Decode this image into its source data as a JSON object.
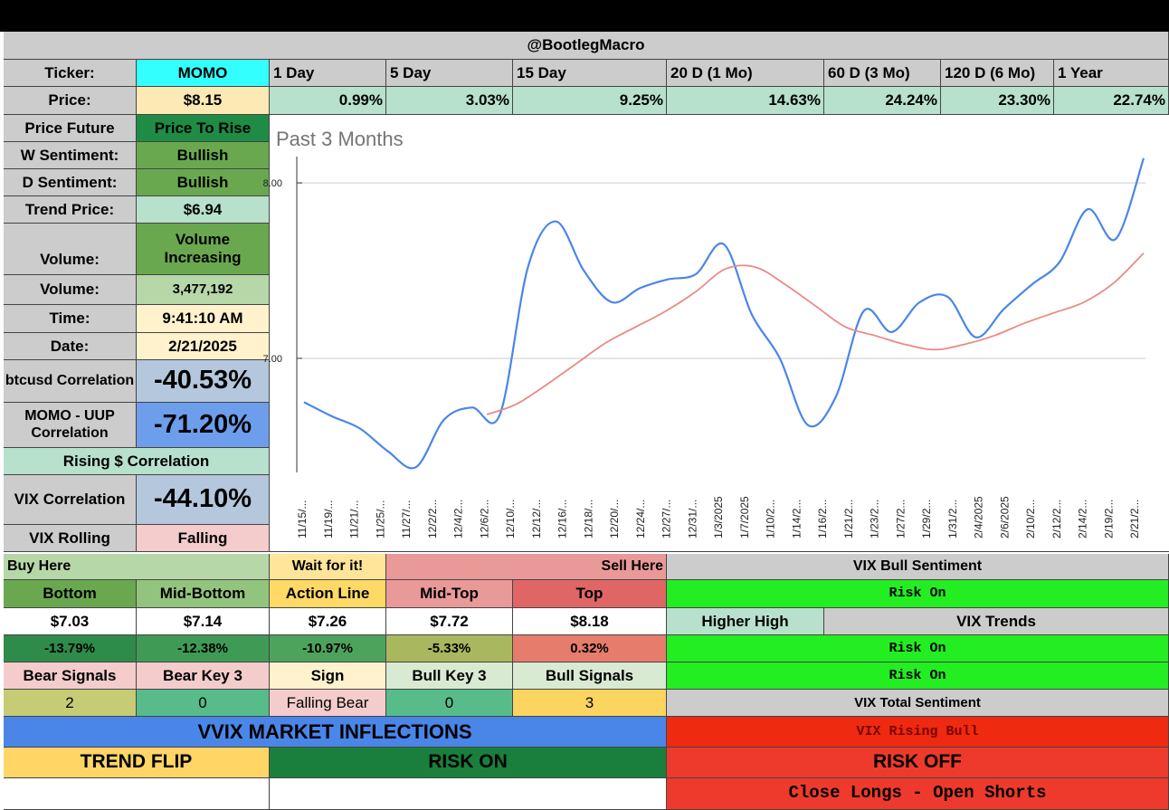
{
  "header": {
    "handle": "@BootlegMacro"
  },
  "ticker": {
    "label": "Ticker:",
    "value": "MOMO"
  },
  "periods": [
    "1 Day",
    "5 Day",
    "15 Day",
    "20 D (1 Mo)",
    "60 D (3 Mo)",
    "120 D (6 Mo)",
    "1 Year"
  ],
  "price": {
    "label": "Price:",
    "value": "$8.15"
  },
  "returns": [
    "0.99%",
    "3.03%",
    "9.25%",
    "14.63%",
    "24.24%",
    "23.30%",
    "22.74%"
  ],
  "left": {
    "price_future": {
      "label": "Price Future",
      "value": "Price To Rise"
    },
    "w_sentiment": {
      "label": "W Sentiment:",
      "value": "Bullish"
    },
    "d_sentiment": {
      "label": "D Sentiment:",
      "value": "Bullish"
    },
    "trend_price": {
      "label": "Trend Price:",
      "value": "$6.94"
    },
    "volume_state": {
      "label": "Volume:",
      "value": "Volume Increasing"
    },
    "volume": {
      "label": "Volume:",
      "value": "3,477,192"
    },
    "time": {
      "label": "Time:",
      "value": "9:41:10 AM"
    },
    "date": {
      "label": "Date:",
      "value": "2/21/2025"
    },
    "btc_corr": {
      "label": "btcusd Correlation",
      "value": "-40.53%"
    },
    "uup_corr": {
      "label": "MOMO - UUP Correlation",
      "value": "-71.20%"
    },
    "rising_corr": "Rising $ Correlation",
    "vix_corr": {
      "label": "VIX Correlation",
      "value": "-44.10%"
    },
    "vix_rolling": {
      "label": "VIX Rolling",
      "value": "Falling"
    }
  },
  "levels": {
    "buy_here": "Buy Here",
    "wait": "Wait for it!",
    "sell_here": "Sell Here",
    "headers": [
      "Bottom",
      "Mid-Bottom",
      "Action Line",
      "Mid-Top",
      "Top"
    ],
    "prices": [
      "$7.03",
      "$7.14",
      "$7.26",
      "$7.72",
      "$8.18"
    ],
    "pcts": [
      "-13.79%",
      "-12.38%",
      "-10.97%",
      "-5.33%",
      "0.32%"
    ]
  },
  "signals": {
    "headers": [
      "Bear Signals",
      "Bear Key 3",
      "Sign",
      "Bull Key 3",
      "Bull Signals"
    ],
    "values": [
      "2",
      "0",
      "Falling Bear",
      "0",
      "3"
    ]
  },
  "vvix": {
    "title": "VVIX MARKET INFLECTIONS",
    "trend_flip": "TREND FLIP",
    "risk_on": "RISK ON"
  },
  "vix_panel": {
    "bull_sentiment": "VIX Bull Sentiment",
    "risk_on_1": "Risk On",
    "higher_high": "Higher High",
    "vix_trends": "VIX Trends",
    "risk_on_2": "Risk On",
    "risk_on_3": "Risk On",
    "total_sentiment": "VIX Total Sentiment",
    "rising_bull": "VIX Rising Bull",
    "risk_off": "RISK OFF",
    "action": "Close Longs - Open Shorts"
  },
  "colors": {
    "price_line": "#4a86e8",
    "ma_line": "#ea8a84",
    "risk_on": "#22ee22",
    "risk_off": "#ee3a2c",
    "vvix_blue": "#4a86e8"
  },
  "chart_data": {
    "type": "line",
    "title": "Past 3 Months",
    "y_tick_labels": [
      "8.00",
      "7.00"
    ],
    "ylim": [
      6.35,
      8.15
    ],
    "x_tick_labels": [
      "11/15/...",
      "11/19/...",
      "11/21/...",
      "11/25/...",
      "11/27/...",
      "12/2/2...",
      "12/4/2...",
      "12/6/2...",
      "12/10/...",
      "12/12/...",
      "12/16/...",
      "12/18/...",
      "12/20/...",
      "12/24/...",
      "12/27/...",
      "12/31/...",
      "1/3/2025",
      "1/7/2025",
      "1/10/2...",
      "1/14/2...",
      "1/16/2...",
      "1/21/2...",
      "1/23/2...",
      "1/27/2...",
      "1/29/2...",
      "1/31/2...",
      "2/4/2025",
      "2/6/2025",
      "2/10/2...",
      "2/12/2...",
      "2/14/2...",
      "2/19/2...",
      "2/21/2..."
    ],
    "series": [
      {
        "values": [
          6.75,
          6.67,
          6.6,
          6.47,
          6.38,
          6.65,
          6.72,
          6.68,
          7.52,
          7.78,
          7.5,
          7.32,
          7.4,
          7.45,
          7.48,
          7.65,
          7.25,
          7.0,
          6.62,
          6.78,
          7.27,
          7.15,
          7.32,
          7.35,
          7.12,
          7.28,
          7.42,
          7.55,
          7.85,
          7.68,
          8.14
        ]
      },
      {
        "values": [
          6.68,
          6.74,
          6.85,
          6.97,
          7.09,
          7.18,
          7.27,
          7.38,
          7.51,
          7.52,
          7.42,
          7.3,
          7.18,
          7.13,
          7.08,
          7.05,
          7.08,
          7.13,
          7.2,
          7.26,
          7.32,
          7.43,
          7.6
        ]
      }
    ]
  }
}
